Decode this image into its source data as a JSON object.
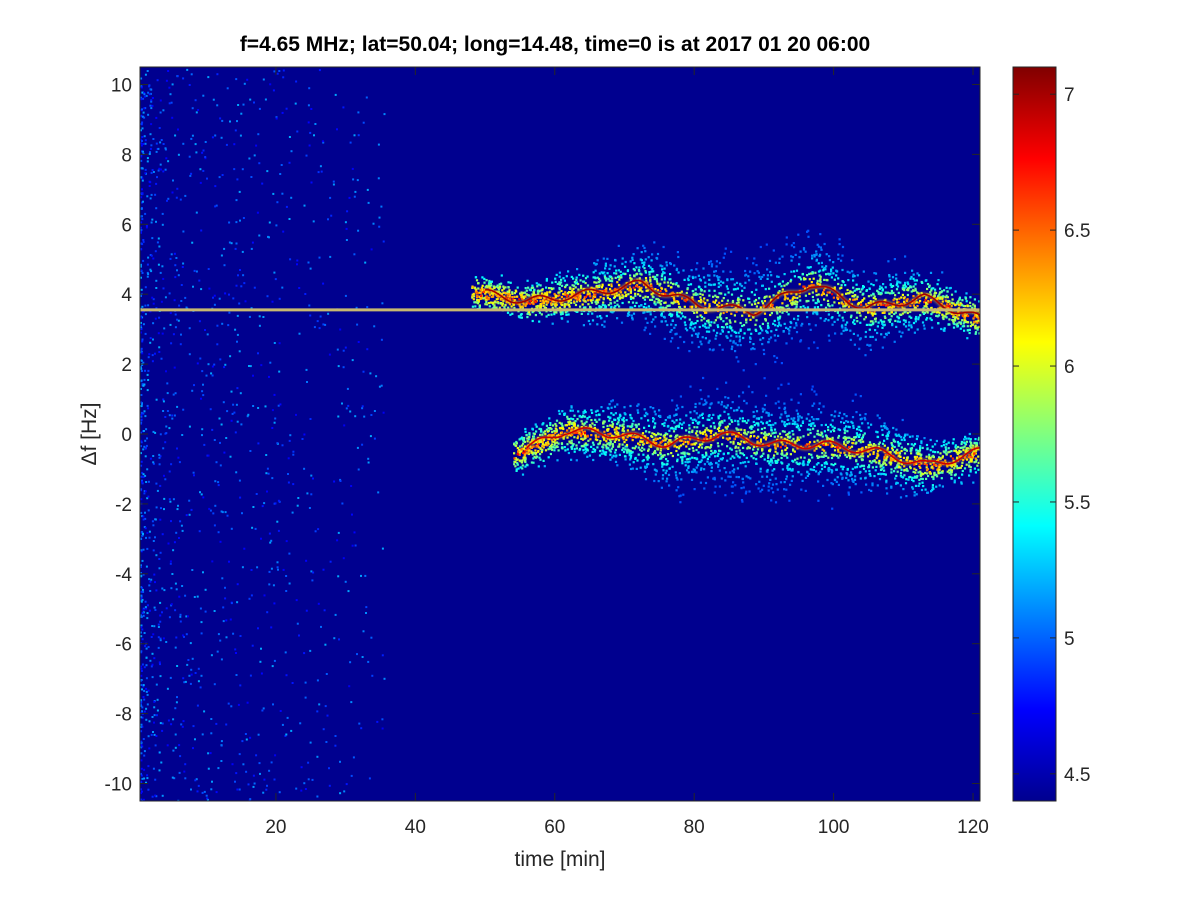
{
  "chart_data": {
    "type": "heatmap",
    "title": "f=4.65 MHz;  lat=50.04; long=14.48, time=0 is at 2017 01 20 06:00",
    "xlabel": "time [min]",
    "ylabel": "Δf [Hz]",
    "xlim": [
      0.5,
      121
    ],
    "ylim": [
      -10.5,
      10.5
    ],
    "x_ticks": [
      20,
      40,
      60,
      80,
      100,
      120
    ],
    "y_ticks": [
      10,
      8,
      6,
      4,
      2,
      0,
      -2,
      -4,
      -6,
      -8,
      -10
    ],
    "colorbar": {
      "colormap": "jet",
      "range": [
        4.4,
        7.1
      ],
      "ticks": [
        4.5,
        5,
        5.5,
        6,
        6.5,
        7
      ]
    },
    "background_value": 4.42,
    "features": [
      {
        "name": "carrier line",
        "time": [
          0.5,
          121
        ],
        "delta_f": 3.55,
        "value": 6.2
      },
      {
        "name": "upper Doppler trace",
        "time": [
          48,
          121
        ],
        "delta_f_center": [
          4.1,
          3.8,
          4.0,
          4.3,
          3.7,
          3.5,
          4.3,
          3.6,
          3.9,
          3.3
        ],
        "value_peak": 7.0
      },
      {
        "name": "lower Doppler trace",
        "time": [
          54,
          121
        ],
        "delta_f_center": [
          -0.6,
          0.1,
          0.0,
          -0.3,
          0.0,
          -0.3,
          -0.3,
          -0.5,
          -0.9,
          -0.5
        ],
        "value_peak": 6.9
      }
    ]
  }
}
